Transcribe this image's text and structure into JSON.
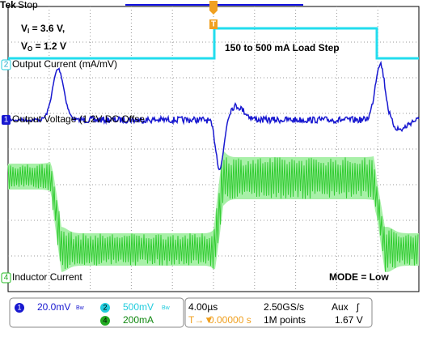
{
  "header": {
    "brand": "Tek",
    "status": "Stop"
  },
  "annotations": {
    "vi": {
      "symbol": "V",
      "sub": "I",
      "rest": " = 3.6 V,"
    },
    "vo": {
      "symbol": "V",
      "sub": "O",
      "rest": " = 1.2 V"
    },
    "load_step": "150 to 500 mA Load Step",
    "mode": "MODE = Low"
  },
  "channels": [
    {
      "number": "2",
      "label": "Output Current (mA/mV)"
    },
    {
      "number": "1",
      "label": "Output Voltage (1.2V DC Offse"
    },
    {
      "number": "4",
      "label": "Inductor Current"
    }
  ],
  "trigger_marker": "T",
  "status_bar": {
    "ch1": {
      "number": "1",
      "scale": "20.0mV",
      "bw": "Bw"
    },
    "ch2": {
      "number": "2",
      "scale": "500mV",
      "bw": "Bw"
    },
    "ch4": {
      "number": "4",
      "scale": "200mA"
    },
    "timebase": "4.00µs",
    "sample_rate": "2.50GS/s",
    "trigger_source": "Aux",
    "trigger_slope": "ʃ",
    "position_marker": "T→▼",
    "trigger_position": "0.00000 s",
    "record_length": "1M points",
    "trigger_level": "1.67 V"
  }
}
